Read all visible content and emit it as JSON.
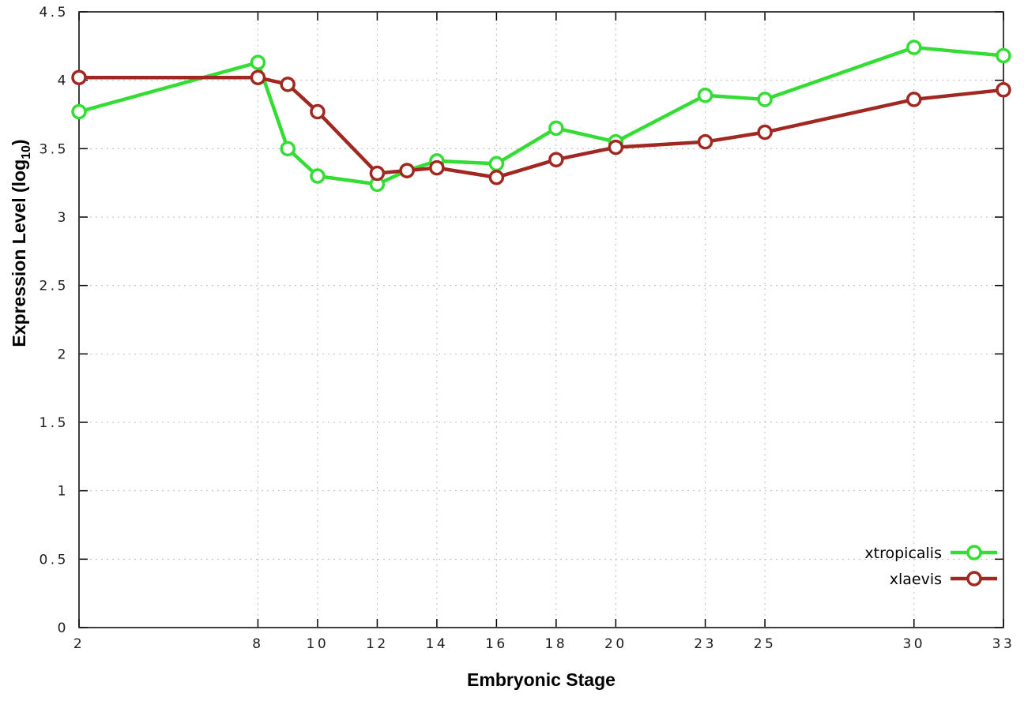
{
  "chart_data": {
    "type": "line",
    "title": "",
    "xlabel": "Embryonic Stage",
    "ylabel_prefix": "Expression Level (log",
    "ylabel_sub": "10",
    "ylabel_suffix": ")",
    "xlim": [
      2,
      33
    ],
    "ylim": [
      0,
      4.5
    ],
    "grid": true,
    "grid_style": "dotted-light-gray",
    "legend_position": "bottom-right-inside",
    "x": [
      2,
      8,
      9,
      10,
      12,
      13,
      14,
      16,
      18,
      20,
      23,
      25,
      30,
      33
    ],
    "xticks": [
      {
        "v": 2,
        "label": "2"
      },
      {
        "v": 8,
        "label": "8"
      },
      {
        "v": 10,
        "label": "10"
      },
      {
        "v": 12,
        "label": "12"
      },
      {
        "v": 14,
        "label": "14"
      },
      {
        "v": 16,
        "label": "16"
      },
      {
        "v": 18,
        "label": "18"
      },
      {
        "v": 20,
        "label": "20"
      },
      {
        "v": 23,
        "label": "23"
      },
      {
        "v": 25,
        "label": "25"
      },
      {
        "v": 30,
        "label": "30"
      },
      {
        "v": 33,
        "label": "33"
      }
    ],
    "yticks": [
      {
        "v": 0,
        "label": "0"
      },
      {
        "v": 0.5,
        "label": "0.5"
      },
      {
        "v": 1,
        "label": "1"
      },
      {
        "v": 1.5,
        "label": "1.5"
      },
      {
        "v": 2,
        "label": "2"
      },
      {
        "v": 2.5,
        "label": "2.5"
      },
      {
        "v": 3,
        "label": "3"
      },
      {
        "v": 3.5,
        "label": "3.5"
      },
      {
        "v": 4,
        "label": "4"
      },
      {
        "v": 4.5,
        "label": "4.5"
      }
    ],
    "series": [
      {
        "name": "xtropicalis",
        "color": "#33dd33",
        "values": [
          3.77,
          4.13,
          3.5,
          3.3,
          3.24,
          3.34,
          3.41,
          3.39,
          3.65,
          3.55,
          3.89,
          3.86,
          4.24,
          4.18
        ]
      },
      {
        "name": "xlaevis",
        "color": "#a02820",
        "values": [
          4.02,
          4.02,
          3.97,
          3.77,
          3.32,
          3.34,
          3.36,
          3.29,
          3.42,
          3.51,
          3.55,
          3.62,
          3.86,
          3.93
        ]
      }
    ]
  }
}
